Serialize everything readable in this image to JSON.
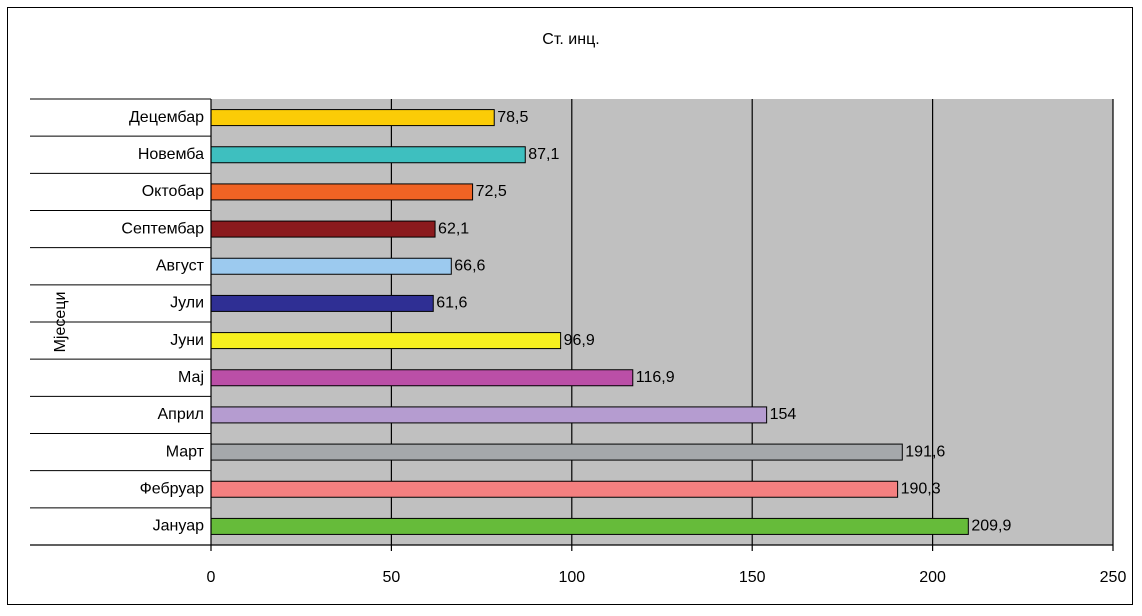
{
  "chart_data": {
    "type": "bar",
    "orientation": "horizontal",
    "title": "Ст. инц.",
    "ylabel": "Мјесеци",
    "xlabel": "",
    "categories": [
      "Јануар",
      "Фебруар",
      "Март",
      "Април",
      "Мај",
      "Јуни",
      "Јули",
      "Август",
      "Септембар",
      "Октобар",
      "Новемба",
      "Децембар"
    ],
    "values": [
      209.9,
      190.3,
      191.6,
      154,
      116.9,
      96.9,
      61.6,
      66.6,
      62.1,
      72.5,
      87.1,
      78.5
    ],
    "value_labels": [
      "209,9",
      "190,3",
      "191,6",
      "154",
      "116,9",
      "96,9",
      "61,6",
      "66,6",
      "62,1",
      "72,5",
      "87,1",
      "78,5"
    ],
    "bar_colors": [
      "#66bb3a",
      "#f48080",
      "#a5a8ab",
      "#b59cd0",
      "#bb4fa7",
      "#f7f01e",
      "#2f2f94",
      "#9ccaef",
      "#8b1a1d",
      "#f06324",
      "#3ebfbf",
      "#fbcc07"
    ],
    "xlim": [
      0,
      250
    ],
    "x_ticks": [
      0,
      50,
      100,
      150,
      200,
      250
    ],
    "grid": true,
    "plot_background": "#c0c0c0"
  }
}
